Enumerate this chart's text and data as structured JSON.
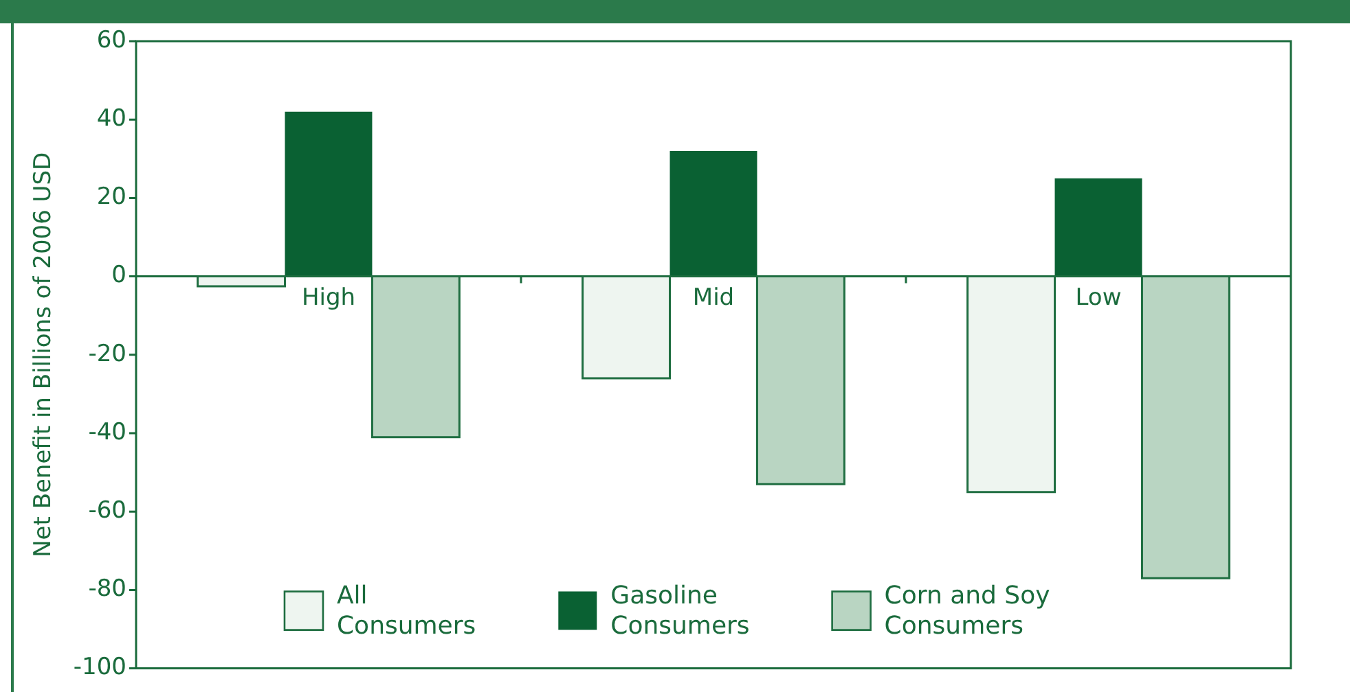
{
  "chart_data": {
    "type": "bar",
    "ylabel": "Net Benefit in Billions of 2006 USD",
    "categories": [
      "High",
      "Mid",
      "Low"
    ],
    "series": [
      {
        "name": "All Consumers",
        "color": "#eef5f0",
        "values": [
          -2.5,
          -26,
          -55
        ]
      },
      {
        "name": "Gasoline Consumers",
        "color": "#0a6133",
        "values": [
          42,
          32,
          25
        ]
      },
      {
        "name": "Corn and Soy Consumers",
        "color": "#b9d5c2",
        "values": [
          -41,
          -53,
          -77
        ]
      }
    ],
    "ylim": [
      -100,
      60
    ],
    "yticks": [
      -100,
      -80,
      -60,
      -40,
      -20,
      0,
      20,
      40,
      60
    ],
    "grid": false,
    "legend": "bottom"
  }
}
